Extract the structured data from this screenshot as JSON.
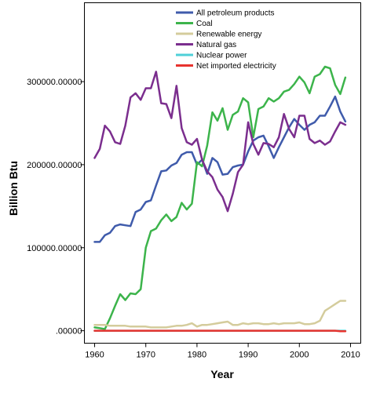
{
  "chart_data": {
    "type": "line",
    "xlabel": "Year",
    "ylabel": "Billion Btu",
    "xlim": [
      1958,
      2012
    ],
    "ylim": [
      -15000,
      395000
    ],
    "x_ticks": [
      1960,
      1970,
      1980,
      1990,
      2000,
      2010
    ],
    "y_ticks": [
      {
        "value": 0,
        "label": ".00000"
      },
      {
        "value": 100000,
        "label": "100000.00000"
      },
      {
        "value": 200000,
        "label": "200000.00000"
      },
      {
        "value": 300000,
        "label": "300000.00000"
      }
    ],
    "grid": false,
    "legend_position": "top-center",
    "x": [
      1960,
      1961,
      1962,
      1963,
      1964,
      1965,
      1966,
      1967,
      1968,
      1969,
      1970,
      1971,
      1972,
      1973,
      1974,
      1975,
      1976,
      1977,
      1978,
      1979,
      1980,
      1981,
      1982,
      1983,
      1984,
      1985,
      1986,
      1987,
      1988,
      1989,
      1990,
      1991,
      1992,
      1993,
      1994,
      1995,
      1996,
      1997,
      1998,
      1999,
      2000,
      2001,
      2002,
      2003,
      2004,
      2005,
      2006,
      2007,
      2008,
      2009
    ],
    "series": [
      {
        "name": "All petroleum products",
        "color": "#3f5bab",
        "values": [
          107000,
          107000,
          115000,
          118000,
          126000,
          128000,
          127000,
          126000,
          143000,
          146000,
          155000,
          157000,
          175000,
          192000,
          193000,
          199000,
          202000,
          212000,
          215000,
          215000,
          200000,
          206000,
          189000,
          208000,
          203000,
          188000,
          189000,
          197000,
          199000,
          200000,
          216000,
          229000,
          233000,
          235000,
          222000,
          208000,
          221000,
          233000,
          245000,
          255000,
          248000,
          242000,
          248000,
          251000,
          259000,
          259000,
          270000,
          282000,
          264000,
          252000
        ]
      },
      {
        "name": "Coal",
        "color": "#3cb44b",
        "values": [
          4000,
          3000,
          2000,
          15000,
          30000,
          44000,
          37000,
          45000,
          44000,
          50000,
          100000,
          120000,
          123000,
          133000,
          140000,
          132000,
          137000,
          154000,
          146000,
          153000,
          203000,
          198000,
          223000,
          263000,
          253000,
          268000,
          242000,
          260000,
          264000,
          280000,
          275000,
          233000,
          267000,
          270000,
          280000,
          276000,
          280000,
          288000,
          290000,
          297000,
          306000,
          299000,
          286000,
          306000,
          309000,
          318000,
          316000,
          296000,
          285000,
          305000
        ]
      },
      {
        "name": "Renewable energy",
        "color": "#d4cc9c",
        "values": [
          7000,
          7000,
          7000,
          6000,
          6000,
          6000,
          6000,
          5000,
          5000,
          5000,
          5000,
          4000,
          4000,
          4000,
          4000,
          5000,
          6000,
          6000,
          7000,
          9000,
          5000,
          7000,
          7000,
          8000,
          9000,
          10000,
          11000,
          7000,
          7000,
          9000,
          8000,
          9000,
          9000,
          8000,
          8000,
          9000,
          8000,
          9000,
          9000,
          9000,
          10000,
          8000,
          8000,
          9000,
          12000,
          24000,
          28000,
          32000,
          36000,
          36000
        ]
      },
      {
        "name": "Natural gas",
        "color": "#7b2e8e",
        "values": [
          208000,
          219000,
          247000,
          240000,
          227000,
          225000,
          247000,
          281000,
          286000,
          278000,
          292000,
          292000,
          312000,
          274000,
          273000,
          256000,
          295000,
          244000,
          227000,
          224000,
          231000,
          206000,
          192000,
          185000,
          170000,
          161000,
          144000,
          165000,
          191000,
          200000,
          251000,
          225000,
          212000,
          226000,
          225000,
          221000,
          233000,
          261000,
          243000,
          233000,
          259000,
          259000,
          231000,
          226000,
          229000,
          224000,
          228000,
          240000,
          251000,
          248000
        ]
      },
      {
        "name": "Nuclear power",
        "color": "#4fd0d8",
        "values": [
          0,
          0,
          0,
          0,
          0,
          0,
          0,
          0,
          0,
          0,
          0,
          0,
          0,
          0,
          0,
          0,
          0,
          0,
          0,
          0,
          0,
          0,
          0,
          0,
          0,
          0,
          0,
          0,
          0,
          0,
          0,
          0,
          0,
          0,
          0,
          0,
          0,
          0,
          0,
          0,
          0,
          0,
          0,
          0,
          0,
          0,
          0,
          0,
          0,
          0
        ]
      },
      {
        "name": "Net imported electricity",
        "color": "#e8332e",
        "values": [
          0,
          0,
          0,
          0,
          0,
          0,
          0,
          0,
          0,
          0,
          0,
          0,
          0,
          0,
          0,
          0,
          0,
          0,
          0,
          0,
          0,
          0,
          0,
          0,
          0,
          0,
          0,
          0,
          0,
          0,
          0,
          0,
          0,
          0,
          0,
          0,
          0,
          0,
          0,
          0,
          0,
          0,
          0,
          0,
          0,
          0,
          0,
          0,
          -500,
          -500
        ]
      }
    ]
  }
}
